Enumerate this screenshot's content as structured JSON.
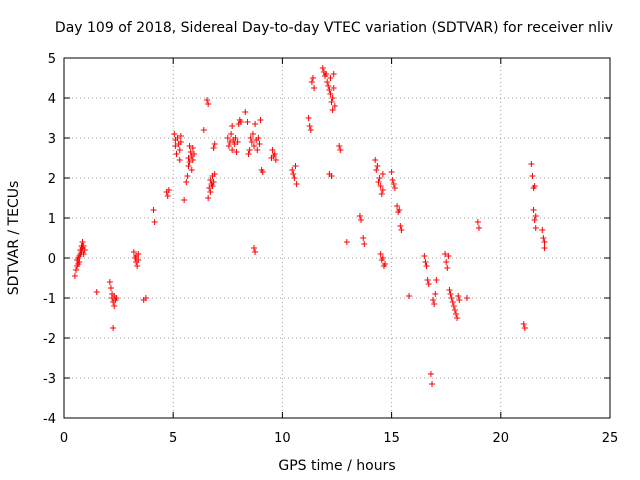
{
  "chart_data": {
    "type": "scatter",
    "title": "Day 109 of 2018, Sidereal Day-to-day VTEC variation (SDTVAR) for receiver nliv",
    "xlabel": "GPS time / hours",
    "ylabel": "SDTVAR / TECUs",
    "xlim": [
      0,
      25
    ],
    "ylim": [
      -4,
      5
    ],
    "xticks": [
      0,
      5,
      10,
      15,
      20,
      25
    ],
    "yticks": [
      -4,
      -3,
      -2,
      -1,
      0,
      1,
      2,
      3,
      4,
      5
    ],
    "grid": true,
    "marker": "+",
    "marker_color": "#ff0000",
    "series": [
      {
        "name": "SDTVAR",
        "points": [
          [
            0.5,
            -0.45
          ],
          [
            0.55,
            -0.3
          ],
          [
            0.6,
            -0.2
          ],
          [
            0.6,
            -0.05
          ],
          [
            0.65,
            0.0
          ],
          [
            0.65,
            -0.15
          ],
          [
            0.7,
            0.05
          ],
          [
            0.7,
            -0.1
          ],
          [
            0.75,
            0.1
          ],
          [
            0.75,
            0.2
          ],
          [
            0.8,
            0.3
          ],
          [
            0.8,
            0.15
          ],
          [
            0.85,
            0.4
          ],
          [
            0.85,
            0.25
          ],
          [
            0.9,
            0.1
          ],
          [
            0.9,
            0.3
          ],
          [
            0.95,
            0.2
          ],
          [
            1.5,
            -0.85
          ],
          [
            2.1,
            -0.6
          ],
          [
            2.15,
            -0.75
          ],
          [
            2.2,
            -0.9
          ],
          [
            2.2,
            -1.0
          ],
          [
            2.25,
            -1.1
          ],
          [
            2.3,
            -1.2
          ],
          [
            2.3,
            -0.95
          ],
          [
            2.35,
            -1.05
          ],
          [
            2.4,
            -1.0
          ],
          [
            2.25,
            -1.75
          ],
          [
            3.2,
            0.15
          ],
          [
            3.25,
            0.0
          ],
          [
            3.3,
            -0.1
          ],
          [
            3.3,
            0.05
          ],
          [
            3.35,
            -0.2
          ],
          [
            3.4,
            -0.05
          ],
          [
            3.4,
            0.1
          ],
          [
            3.65,
            -1.05
          ],
          [
            3.75,
            -1.0
          ],
          [
            4.1,
            1.2
          ],
          [
            4.15,
            0.9
          ],
          [
            4.7,
            1.65
          ],
          [
            4.75,
            1.55
          ],
          [
            4.8,
            1.7
          ],
          [
            5.05,
            3.1
          ],
          [
            5.1,
            2.8
          ],
          [
            5.1,
            2.95
          ],
          [
            5.15,
            2.6
          ],
          [
            5.2,
            3.0
          ],
          [
            5.25,
            2.85
          ],
          [
            5.3,
            2.45
          ],
          [
            5.3,
            2.7
          ],
          [
            5.35,
            2.9
          ],
          [
            5.35,
            3.05
          ],
          [
            5.5,
            1.45
          ],
          [
            5.6,
            1.9
          ],
          [
            5.65,
            2.05
          ],
          [
            5.7,
            2.3
          ],
          [
            5.7,
            2.5
          ],
          [
            5.75,
            2.8
          ],
          [
            5.75,
            2.4
          ],
          [
            5.8,
            2.65
          ],
          [
            5.85,
            2.2
          ],
          [
            5.85,
            2.55
          ],
          [
            5.9,
            2.75
          ],
          [
            5.9,
            2.45
          ],
          [
            5.95,
            2.6
          ],
          [
            6.4,
            3.2
          ],
          [
            6.55,
            3.95
          ],
          [
            6.6,
            3.85
          ],
          [
            6.6,
            1.5
          ],
          [
            6.65,
            1.75
          ],
          [
            6.7,
            1.65
          ],
          [
            6.7,
            1.95
          ],
          [
            6.75,
            1.85
          ],
          [
            6.8,
            2.05
          ],
          [
            6.8,
            1.8
          ],
          [
            6.85,
            1.9
          ],
          [
            6.9,
            2.1
          ],
          [
            6.85,
            2.75
          ],
          [
            6.9,
            2.85
          ],
          [
            7.5,
            3.0
          ],
          [
            7.55,
            2.8
          ],
          [
            7.6,
            2.9
          ],
          [
            7.65,
            3.1
          ],
          [
            7.7,
            3.3
          ],
          [
            7.7,
            2.7
          ],
          [
            7.75,
            2.95
          ],
          [
            7.8,
            2.85
          ],
          [
            7.85,
            3.0
          ],
          [
            7.9,
            2.65
          ],
          [
            7.95,
            2.9
          ],
          [
            8.0,
            3.35
          ],
          [
            8.05,
            3.45
          ],
          [
            8.1,
            3.4
          ],
          [
            8.3,
            3.65
          ],
          [
            8.4,
            3.4
          ],
          [
            8.45,
            2.6
          ],
          [
            8.5,
            2.7
          ],
          [
            8.55,
            3.0
          ],
          [
            8.6,
            2.9
          ],
          [
            8.65,
            3.1
          ],
          [
            8.7,
            2.8
          ],
          [
            8.75,
            3.35
          ],
          [
            8.8,
            2.95
          ],
          [
            8.85,
            2.7
          ],
          [
            8.9,
            3.0
          ],
          [
            8.95,
            2.85
          ],
          [
            8.7,
            0.25
          ],
          [
            8.75,
            0.15
          ],
          [
            9.0,
            3.45
          ],
          [
            9.05,
            2.2
          ],
          [
            9.1,
            2.15
          ],
          [
            9.5,
            2.5
          ],
          [
            9.55,
            2.7
          ],
          [
            9.6,
            2.55
          ],
          [
            9.65,
            2.6
          ],
          [
            9.7,
            2.45
          ],
          [
            10.45,
            2.2
          ],
          [
            10.5,
            2.1
          ],
          [
            10.55,
            2.0
          ],
          [
            10.6,
            2.3
          ],
          [
            10.65,
            1.85
          ],
          [
            11.2,
            3.5
          ],
          [
            11.25,
            3.3
          ],
          [
            11.3,
            3.2
          ],
          [
            11.35,
            4.4
          ],
          [
            11.4,
            4.5
          ],
          [
            11.45,
            4.25
          ],
          [
            11.85,
            4.75
          ],
          [
            11.9,
            4.65
          ],
          [
            11.95,
            4.55
          ],
          [
            12.0,
            4.6
          ],
          [
            12.05,
            4.4
          ],
          [
            12.1,
            4.3
          ],
          [
            12.15,
            4.2
          ],
          [
            12.2,
            4.1
          ],
          [
            12.2,
            4.5
          ],
          [
            12.25,
            3.9
          ],
          [
            12.3,
            4.0
          ],
          [
            12.3,
            3.7
          ],
          [
            12.35,
            4.25
          ],
          [
            12.35,
            4.6
          ],
          [
            12.4,
            3.8
          ],
          [
            12.15,
            2.1
          ],
          [
            12.25,
            2.05
          ],
          [
            12.6,
            2.8
          ],
          [
            12.65,
            2.7
          ],
          [
            12.95,
            0.4
          ],
          [
            13.55,
            1.05
          ],
          [
            13.6,
            0.95
          ],
          [
            13.7,
            0.5
          ],
          [
            13.75,
            0.35
          ],
          [
            14.25,
            2.45
          ],
          [
            14.3,
            2.2
          ],
          [
            14.35,
            2.3
          ],
          [
            14.4,
            1.9
          ],
          [
            14.45,
            2.0
          ],
          [
            14.5,
            1.8
          ],
          [
            14.55,
            1.6
          ],
          [
            14.6,
            2.1
          ],
          [
            14.6,
            1.7
          ],
          [
            14.5,
            0.1
          ],
          [
            14.55,
            -0.05
          ],
          [
            14.6,
            0.0
          ],
          [
            14.65,
            -0.2
          ],
          [
            14.7,
            -0.15
          ],
          [
            15.0,
            2.15
          ],
          [
            15.05,
            1.95
          ],
          [
            15.1,
            1.85
          ],
          [
            15.15,
            1.75
          ],
          [
            15.25,
            1.3
          ],
          [
            15.3,
            1.15
          ],
          [
            15.35,
            1.2
          ],
          [
            15.4,
            0.8
          ],
          [
            15.45,
            0.7
          ],
          [
            15.8,
            -0.95
          ],
          [
            16.5,
            0.05
          ],
          [
            16.55,
            -0.1
          ],
          [
            16.6,
            -0.2
          ],
          [
            16.65,
            -0.55
          ],
          [
            16.7,
            -0.65
          ],
          [
            16.8,
            -2.9
          ],
          [
            16.85,
            -3.15
          ],
          [
            16.9,
            -1.05
          ],
          [
            16.95,
            -1.15
          ],
          [
            17.0,
            -0.9
          ],
          [
            17.05,
            -0.55
          ],
          [
            17.45,
            0.1
          ],
          [
            17.5,
            -0.1
          ],
          [
            17.55,
            -0.25
          ],
          [
            17.6,
            0.05
          ],
          [
            17.65,
            -0.8
          ],
          [
            17.7,
            -0.9
          ],
          [
            17.75,
            -1.0
          ],
          [
            17.8,
            -1.1
          ],
          [
            17.85,
            -1.2
          ],
          [
            17.9,
            -1.3
          ],
          [
            17.95,
            -1.4
          ],
          [
            18.0,
            -1.5
          ],
          [
            18.05,
            -0.95
          ],
          [
            18.1,
            -1.05
          ],
          [
            18.45,
            -1.0
          ],
          [
            18.95,
            0.9
          ],
          [
            19.0,
            0.75
          ],
          [
            21.05,
            -1.65
          ],
          [
            21.1,
            -1.75
          ],
          [
            21.4,
            2.35
          ],
          [
            21.45,
            2.05
          ],
          [
            21.5,
            1.75
          ],
          [
            21.5,
            1.2
          ],
          [
            21.55,
            1.8
          ],
          [
            21.55,
            0.95
          ],
          [
            21.6,
            1.05
          ],
          [
            21.6,
            0.75
          ],
          [
            21.9,
            0.7
          ],
          [
            21.95,
            0.5
          ],
          [
            22.0,
            0.4
          ],
          [
            22.0,
            0.25
          ]
        ]
      }
    ]
  }
}
